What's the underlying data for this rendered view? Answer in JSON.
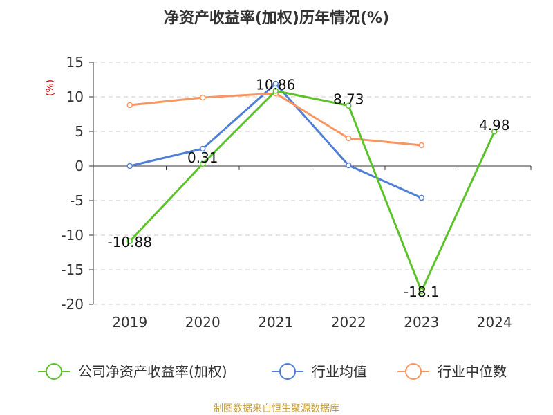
{
  "chart_data": {
    "type": "line",
    "title": "净资产收益率(加权)历年情况(%)",
    "ylabel": "(%)",
    "xlabel": "",
    "categories": [
      "2019",
      "2020",
      "2021",
      "2022",
      "2023",
      "2024"
    ],
    "ylim": [
      -20,
      15
    ],
    "yticks": [
      15,
      10,
      5,
      0,
      -5,
      -10,
      -15,
      -20
    ],
    "grid": true,
    "legend_position": "bottom",
    "series": [
      {
        "name": "公司净资产收益率(加权)",
        "color": "#5cc22a",
        "values": [
          -10.88,
          0.31,
          10.86,
          8.73,
          -18.1,
          4.98
        ],
        "labels": [
          "-10.88",
          "0.31",
          "10.86",
          "8.73",
          "-18.1",
          "4.98"
        ]
      },
      {
        "name": "行业均值",
        "color": "#4f7fd6",
        "values": [
          0.0,
          2.5,
          11.9,
          0.1,
          -4.6,
          null
        ]
      },
      {
        "name": "行业中位数",
        "color": "#f79660",
        "values": [
          8.8,
          9.9,
          10.5,
          4.0,
          3.0,
          null
        ]
      }
    ],
    "source": "制图数据来自恒生聚源数据库"
  }
}
